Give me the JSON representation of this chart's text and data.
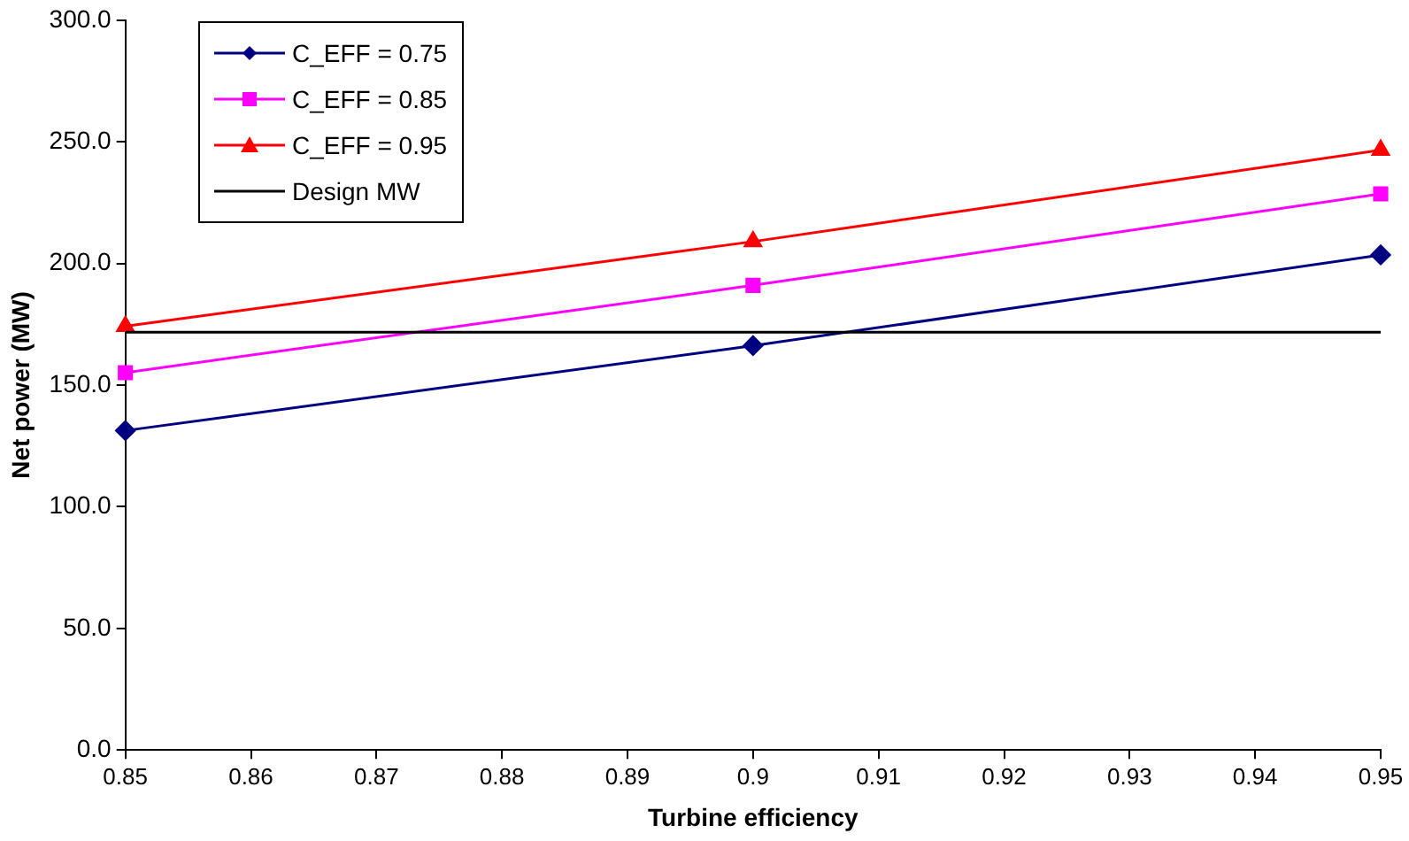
{
  "chart_data": {
    "type": "line",
    "xlabel": "Turbine efficiency",
    "ylabel": "Net power (MW)",
    "x": [
      0.85,
      0.9,
      0.95
    ],
    "series": [
      {
        "name": "C_EFF = 0.75",
        "color": "#000080",
        "marker": "diamond",
        "values": [
          131.3,
          166.2,
          203.5
        ]
      },
      {
        "name": "C_EFF = 0.85",
        "color": "#ff00ff",
        "marker": "square",
        "values": [
          155.1,
          191,
          228.6
        ]
      },
      {
        "name": "C_EFF = 0.95",
        "color": "#ff0000",
        "marker": "triangle",
        "values": [
          174.2,
          209,
          246.6
        ]
      }
    ],
    "ref_lines": [
      {
        "axis": "y",
        "value": 171.7,
        "label": "Design MW",
        "color": "#000000"
      }
    ],
    "xlim": [
      0.85,
      0.95
    ],
    "xticks": [
      0.85,
      0.86,
      0.87,
      0.88,
      0.89,
      0.9,
      0.91,
      0.92,
      0.93,
      0.94,
      0.95
    ],
    "ylim": [
      0,
      300
    ],
    "yticks": [
      {
        "value": 0,
        "label": "0.0"
      },
      {
        "value": 50,
        "label": "50.0"
      },
      {
        "value": 100,
        "label": "100.0"
      },
      {
        "value": 150,
        "label": "150.0"
      },
      {
        "value": 200,
        "label": "200.0"
      },
      {
        "value": 250,
        "label": "250.0"
      },
      {
        "value": 300,
        "label": "300.0"
      }
    ],
    "grid": false,
    "legend": "top left"
  }
}
